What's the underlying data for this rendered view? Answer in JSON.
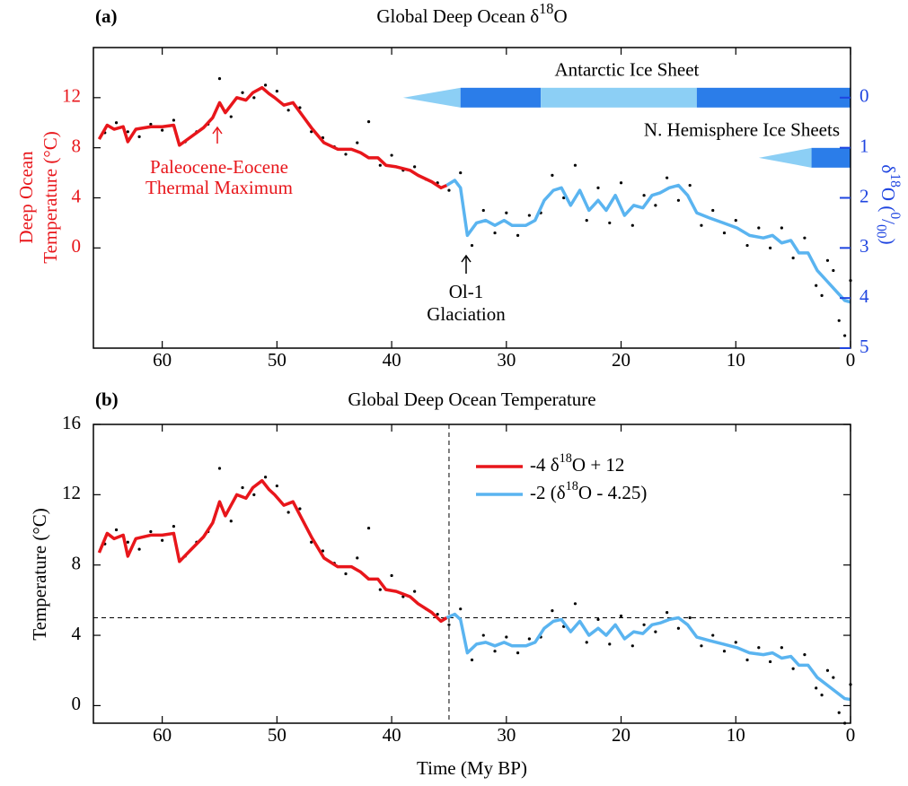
{
  "chart_data": [
    {
      "type": "line",
      "panel_label": "(a)",
      "title": [
        {
          "t": "Global Deep Ocean δ"
        },
        {
          "sup": "18"
        },
        {
          "t": "O"
        }
      ],
      "y_label": [
        "Deep Ocean",
        "Temperature (°C)"
      ],
      "y_color": "#e8161b",
      "y2_label": [
        {
          "t": "δ"
        },
        {
          "sup": "18"
        },
        {
          "t": "O ("
        },
        {
          "sup": "0"
        },
        {
          "t": "/"
        },
        {
          "sub": "00"
        },
        {
          "t": ")"
        }
      ],
      "y2_color": "#1f45e0",
      "xlim": [
        66,
        0
      ],
      "xticks": [
        60,
        50,
        40,
        30,
        20,
        10,
        0
      ],
      "ylim": [
        -8,
        16
      ],
      "yticks": [
        0,
        4,
        8,
        12
      ],
      "y2lim": [
        5,
        -1
      ],
      "y2ticks": [
        0,
        1,
        2,
        3,
        4,
        5
      ],
      "points": {
        "color": "#000000",
        "axis": "y2",
        "x": [
          65,
          64,
          63,
          62,
          61,
          60,
          59,
          58,
          57,
          56,
          55,
          54,
          53,
          52,
          51,
          50,
          49,
          48,
          47,
          46,
          45,
          44,
          43,
          42,
          41,
          40,
          39,
          38,
          37,
          36,
          35,
          34,
          33,
          32,
          31,
          30,
          29,
          28,
          27,
          26,
          25,
          24,
          23,
          22,
          21,
          20,
          19,
          18,
          17,
          16,
          15,
          14,
          13,
          12,
          11,
          10,
          9,
          8,
          7,
          6,
          5,
          4,
          3,
          2.5,
          2,
          1.5,
          1,
          0.5,
          0
        ],
        "y": [
          0.7,
          0.5,
          0.68,
          0.78,
          0.53,
          0.65,
          0.45,
          0.88,
          0.68,
          0.53,
          -0.38,
          0.38,
          -0.1,
          0,
          -0.25,
          -0.13,
          0.25,
          0.2,
          0.68,
          0.8,
          0.98,
          1.13,
          0.9,
          0.48,
          1.35,
          1.15,
          1.45,
          1.38,
          1.63,
          1.7,
          1.85,
          1.5,
          2.95,
          2.25,
          2.7,
          2.3,
          2.75,
          2.35,
          2.3,
          1.55,
          2.0,
          1.35,
          2.45,
          1.8,
          2.5,
          1.7,
          2.55,
          1.95,
          2.15,
          1.6,
          2.05,
          1.75,
          2.55,
          2.25,
          2.7,
          2.45,
          2.95,
          2.6,
          3.0,
          2.6,
          3.2,
          2.8,
          3.75,
          3.95,
          3.25,
          3.45,
          4.45,
          4.75,
          3.65
        ]
      },
      "series": [
        {
          "color": "#e8161b",
          "axis": "y2",
          "x": [
            65.5,
            64.8,
            64.2,
            63.4,
            63,
            62.3,
            61,
            60,
            59,
            58.5,
            57.6,
            56.4,
            55.6,
            55,
            54.5,
            53.5,
            52.7,
            52.1,
            51.3,
            50.7,
            50.2,
            49.4,
            48.6,
            47.8,
            47,
            45.9,
            44.7,
            43.5,
            42.7,
            42,
            41.2,
            40.5,
            39.6,
            38.4,
            37.7,
            36.5,
            35.7,
            35.2
          ],
          "values": [
            0.83,
            0.55,
            0.63,
            0.58,
            0.88,
            0.63,
            0.58,
            0.58,
            0.55,
            0.95,
            0.8,
            0.6,
            0.4,
            0.1,
            0.3,
            0,
            0.05,
            -0.1,
            -0.2,
            -0.08,
            0,
            0.15,
            0.1,
            0.35,
            0.6,
            0.9,
            1.03,
            1.03,
            1.1,
            1.2,
            1.2,
            1.35,
            1.38,
            1.45,
            1.55,
            1.68,
            1.8,
            1.75
          ]
        },
        {
          "color": "#5ab4f0",
          "axis": "y2",
          "x": [
            35.2,
            34.5,
            34,
            33.4,
            32.6,
            31.8,
            31,
            30.2,
            29.5,
            28.3,
            27.5,
            26.7,
            25.9,
            25.2,
            24.4,
            23.6,
            22.8,
            22,
            21.3,
            20.5,
            19.7,
            18.9,
            18.1,
            17.3,
            16.6,
            15.8,
            15,
            14.2,
            13.4,
            12.3,
            11.1,
            9.9,
            8.8,
            7.6,
            6.8,
            6,
            5.2,
            4.5,
            3.7,
            2.9,
            2.1,
            1.3,
            0.5,
            0
          ],
          "values": [
            1.75,
            1.65,
            1.8,
            2.75,
            2.5,
            2.45,
            2.55,
            2.45,
            2.55,
            2.55,
            2.45,
            2.05,
            1.85,
            1.8,
            2.15,
            1.85,
            2.25,
            2.05,
            2.25,
            1.95,
            2.35,
            2.15,
            2.2,
            1.95,
            1.9,
            1.8,
            1.75,
            1.95,
            2.3,
            2.4,
            2.5,
            2.6,
            2.75,
            2.8,
            2.75,
            2.9,
            2.85,
            3.1,
            3.1,
            3.45,
            3.65,
            3.85,
            4.05,
            4.08
          ]
        }
      ],
      "ice_sheets": [
        {
          "label": "Antarctic Ice Sheet",
          "y": 0,
          "segments": [
            {
              "x": [
                39,
                34
              ],
              "color": "#8ccff5"
            },
            {
              "x": [
                34,
                27
              ],
              "color": "#2b7de9"
            },
            {
              "x": [
                27,
                13.4
              ],
              "color": "#8ccff5"
            },
            {
              "x": [
                13.4,
                0
              ],
              "color": "#2b7de9"
            }
          ]
        },
        {
          "label": "N. Hemisphere Ice Sheets",
          "y": 1.2,
          "segments": [
            {
              "x": [
                8,
                3.4
              ],
              "color": "#8ccff5"
            },
            {
              "x": [
                3.4,
                0
              ],
              "color": "#2b7de9"
            }
          ]
        }
      ],
      "annotations": [
        [
          "Paleocene-Eocene",
          "Thermal Maximum"
        ],
        [
          "Ol-1",
          "Glaciation"
        ]
      ]
    },
    {
      "type": "line",
      "panel_label": "(b)",
      "title": [
        {
          "t": "Global Deep Ocean Temperature"
        }
      ],
      "y_label": [
        "Temperature (°C)"
      ],
      "x_label": "Time (My BP)",
      "xlim": [
        66,
        0
      ],
      "xticks": [
        60,
        50,
        40,
        30,
        20,
        10,
        0
      ],
      "ylim": [
        -1,
        16
      ],
      "yticks": [
        0,
        4,
        8,
        12,
        16
      ],
      "legend": "upper right",
      "reference_lines": {
        "x": 35,
        "y": 5
      },
      "points": {
        "color": "#000000",
        "x": [
          65,
          64,
          63,
          62,
          61,
          60,
          59,
          58,
          57,
          56,
          55,
          54,
          53,
          52,
          51,
          50,
          49,
          48,
          47,
          46,
          45,
          44,
          43,
          42,
          41,
          40,
          39,
          38,
          37,
          36,
          35,
          34,
          33,
          32,
          31,
          30,
          29,
          28,
          27,
          26,
          25,
          24,
          23,
          22,
          21,
          20,
          19,
          18,
          17,
          16,
          15,
          14,
          13,
          12,
          11,
          10,
          9,
          8,
          7,
          6,
          5,
          4,
          3,
          2.5,
          2,
          1.5,
          1,
          0.5,
          0
        ],
        "y": [
          9.2,
          10.0,
          9.3,
          8.9,
          9.9,
          9.4,
          10.2,
          8.5,
          9.3,
          9.9,
          13.5,
          10.5,
          12.4,
          12.0,
          13.0,
          12.5,
          11.0,
          11.2,
          9.3,
          8.8,
          8.1,
          7.5,
          8.4,
          10.1,
          6.6,
          7.4,
          6.2,
          6.5,
          5.5,
          5.2,
          4.6,
          5.5,
          2.6,
          4.0,
          3.1,
          3.9,
          3.0,
          3.8,
          3.9,
          5.4,
          4.5,
          5.8,
          3.6,
          4.9,
          3.5,
          5.1,
          3.4,
          4.6,
          4.2,
          5.3,
          4.4,
          5.0,
          3.4,
          4.0,
          3.1,
          3.6,
          2.6,
          3.3,
          2.5,
          3.3,
          2.1,
          2.9,
          1.0,
          0.6,
          2.0,
          1.6,
          -0.4,
          -1.0,
          1.2
        ]
      },
      "series": [
        {
          "name": [
            {
              "t": "-4 δ"
            },
            {
              "sup": "18"
            },
            {
              "t": "O + 12"
            }
          ],
          "color": "#e8161b",
          "x": [
            65.5,
            64.8,
            64.2,
            63.4,
            63,
            62.3,
            61,
            60,
            59,
            58.5,
            57.6,
            56.4,
            55.6,
            55,
            54.5,
            53.5,
            52.7,
            52.1,
            51.3,
            50.7,
            50.2,
            49.4,
            48.6,
            47.8,
            47,
            45.9,
            44.7,
            43.5,
            42.7,
            42,
            41.2,
            40.5,
            39.6,
            38.4,
            37.7,
            36.5,
            35.7,
            35.2
          ],
          "values": [
            8.7,
            9.8,
            9.5,
            9.7,
            8.5,
            9.5,
            9.7,
            9.7,
            9.8,
            8.2,
            8.8,
            9.6,
            10.4,
            11.6,
            10.8,
            12,
            11.8,
            12.4,
            12.8,
            12.3,
            12,
            11.4,
            11.6,
            10.6,
            9.6,
            8.4,
            7.9,
            7.9,
            7.6,
            7.2,
            7.2,
            6.6,
            6.5,
            6.2,
            5.8,
            5.3,
            4.8,
            5.0
          ]
        },
        {
          "name": [
            {
              "t": "-2 (δ"
            },
            {
              "sup": "18"
            },
            {
              "t": "O - 4.25)"
            }
          ],
          "color": "#5ab4f0",
          "x": [
            35.2,
            34.5,
            34,
            33.4,
            32.6,
            31.8,
            31,
            30.2,
            29.5,
            28.3,
            27.5,
            26.7,
            25.9,
            25.2,
            24.4,
            23.6,
            22.8,
            22,
            21.3,
            20.5,
            19.7,
            18.9,
            18.1,
            17.3,
            16.6,
            15.8,
            15,
            14.2,
            13.4,
            12.3,
            11.1,
            9.9,
            8.8,
            7.6,
            6.8,
            6,
            5.2,
            4.5,
            3.7,
            2.9,
            2.1,
            1.3,
            0.5,
            0
          ],
          "values": [
            5.0,
            5.2,
            4.9,
            3.0,
            3.5,
            3.6,
            3.4,
            3.6,
            3.4,
            3.4,
            3.6,
            4.4,
            4.8,
            4.9,
            4.2,
            4.8,
            4.0,
            4.4,
            4.0,
            4.6,
            3.8,
            4.2,
            4.1,
            4.6,
            4.7,
            4.9,
            5.0,
            4.6,
            3.9,
            3.7,
            3.5,
            3.3,
            3.0,
            2.9,
            3.0,
            2.7,
            2.8,
            2.3,
            2.3,
            1.6,
            1.2,
            0.8,
            0.4,
            0.35
          ]
        }
      ]
    }
  ]
}
